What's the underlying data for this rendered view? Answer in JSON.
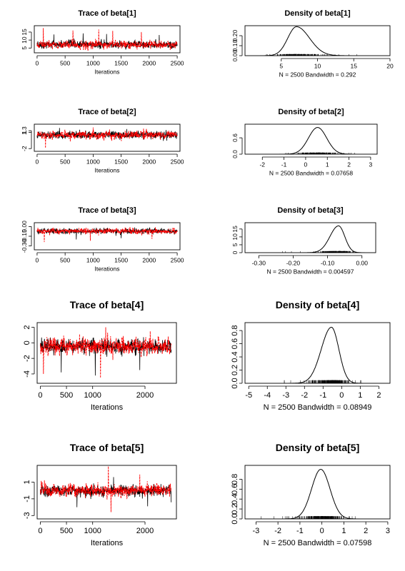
{
  "chart_data": [
    {
      "type": "line",
      "title": "Trace of beta[1]",
      "xlabel": "Iterations",
      "ylabel": "",
      "xlim": [
        -50,
        2550
      ],
      "ylim": [
        2,
        19
      ],
      "x_ticks": [
        0,
        500,
        1000,
        1500,
        2000,
        2500
      ],
      "y_ticks": [
        5,
        10,
        15
      ],
      "y_tick_labels": [
        "5",
        "10",
        "15"
      ],
      "n_iterations": 2500,
      "series": [
        {
          "color": "#000000",
          "center": 7.2,
          "spread": 1.4,
          "spikes": [
            [
              300,
              13.5
            ],
            [
              820,
              14.2
            ],
            [
              1240,
              13.8
            ],
            [
              2180,
              13.2
            ]
          ]
        },
        {
          "color": "#ff0000",
          "center": 7.0,
          "spread": 1.5,
          "spikes": [
            [
              110,
              17.5
            ],
            [
              640,
              16.0
            ],
            [
              1100,
              16.6
            ],
            [
              1350,
              15.8
            ],
            [
              1860,
              15.0
            ]
          ]
        }
      ]
    },
    {
      "type": "line",
      "title": "Density of beta[1]",
      "xlabel": "N = 2500   Bandwidth = 0.292",
      "ylabel": "",
      "xlim": [
        0,
        20
      ],
      "ylim": [
        0,
        0.3
      ],
      "x_ticks": [
        5,
        10,
        15,
        20
      ],
      "y_ticks": [
        0,
        0.1,
        0.2
      ],
      "y_tick_labels": [
        "0.00",
        "0.10",
        "0.20"
      ],
      "curve": {
        "mode": 7.1,
        "sd_left": 1.2,
        "sd_right": 1.8,
        "peak": 0.29
      },
      "rug_range": [
        2.2,
        18.5
      ]
    },
    {
      "type": "line",
      "title": "Trace of beta[2]",
      "xlabel": "Iterations",
      "ylabel": "",
      "xlim": [
        -50,
        2550
      ],
      "ylim": [
        -2.5,
        2.5
      ],
      "x_ticks": [
        0,
        500,
        1000,
        1500,
        2000,
        2500
      ],
      "y_ticks": [
        -2,
        1,
        1.3
      ],
      "y_tick_labels": [
        "-2",
        "1",
        "1.3"
      ],
      "n_iterations": 2500,
      "series": [
        {
          "color": "#000000",
          "center": 0.5,
          "spread": 0.4,
          "spikes": [
            [
              400,
              1.8
            ],
            [
              1600,
              1.6
            ]
          ]
        },
        {
          "color": "#ff0000",
          "center": 0.5,
          "spread": 0.45,
          "spikes": [
            [
              150,
              -1.9
            ],
            [
              1000,
              1.9
            ],
            [
              1900,
              1.7
            ]
          ]
        }
      ]
    },
    {
      "type": "line",
      "title": "Density of beta[2]",
      "xlabel": "N = 2500   Bandwidth = 0.07658",
      "ylabel": "",
      "xlim": [
        -2.8,
        3.3
      ],
      "ylim": [
        0,
        1.1
      ],
      "x_ticks": [
        -2,
        -1,
        0,
        1,
        2,
        3
      ],
      "y_ticks": [
        0,
        0.6
      ],
      "y_tick_labels": [
        "0.0",
        "0.6"
      ],
      "curve": {
        "mode": 0.55,
        "sd_left": 0.42,
        "sd_right": 0.42,
        "peak": 0.98
      },
      "rug_range": [
        -1.5,
        2.6
      ]
    },
    {
      "type": "line",
      "title": "Trace of beta[3]",
      "xlabel": "Iterations",
      "ylabel": "",
      "xlim": [
        -50,
        2550
      ],
      "ylim": [
        -0.36,
        0.06
      ],
      "x_ticks": [
        0,
        500,
        1000,
        1500,
        2000,
        2500
      ],
      "y_ticks": [
        -0.3,
        -0.15,
        0
      ],
      "y_tick_labels": [
        "-0.30",
        "-0.15",
        "0.00"
      ],
      "n_iterations": 2500,
      "series": [
        {
          "color": "#000000",
          "center": -0.07,
          "spread": 0.025,
          "spikes": [
            [
              700,
              -0.2
            ],
            [
              1500,
              -0.18
            ]
          ]
        },
        {
          "color": "#ff0000",
          "center": -0.07,
          "spread": 0.028,
          "spikes": [
            [
              130,
              -0.24
            ],
            [
              950,
              -0.22
            ],
            [
              2050,
              -0.19
            ]
          ]
        }
      ]
    },
    {
      "type": "line",
      "title": "Density of beta[3]",
      "xlabel": "N = 2500   Bandwidth = 0.004597",
      "ylabel": "",
      "xlim": [
        -0.34,
        0.04
      ],
      "ylim": [
        0,
        19
      ],
      "x_ticks": [
        -0.3,
        -0.2,
        -0.1,
        0
      ],
      "y_ticks": [
        0,
        5,
        10,
        15
      ],
      "y_tick_labels": [
        "0",
        "5",
        "10",
        "15"
      ],
      "x_tick_labels": [
        "-0.30",
        "-0.20",
        "-0.10",
        "0.00"
      ],
      "curve": {
        "mode": -0.068,
        "sd_left": 0.025,
        "sd_right": 0.018,
        "peak": 17
      },
      "rug_range": [
        -0.24,
        -0.01
      ]
    },
    {
      "type": "line",
      "title": "Trace of beta[4]",
      "xlabel": "Iterations",
      "ylabel": "",
      "xlim": [
        -60,
        2600
      ],
      "ylim": [
        -5.2,
        2.6
      ],
      "x_ticks": [
        0,
        500,
        1000,
        2000
      ],
      "y_ticks": [
        -4,
        -2,
        0,
        2
      ],
      "y_tick_labels": [
        "-4",
        "-2",
        "0",
        "2"
      ],
      "n_iterations": 2500,
      "series": [
        {
          "color": "#000000",
          "center": -0.5,
          "spread": 0.55,
          "spikes": [
            [
              400,
              -3.8
            ],
            [
              1050,
              -4.2
            ],
            [
              1900,
              -3.5
            ]
          ]
        },
        {
          "color": "#ff0000",
          "center": -0.45,
          "spread": 0.6,
          "spikes": [
            [
              60,
              -4.0
            ],
            [
              1150,
              -4.5
            ],
            [
              1250,
              2.0
            ],
            [
              2100,
              1.5
            ]
          ]
        }
      ]
    },
    {
      "type": "line",
      "title": "Density of beta[4]",
      "xlabel": "N = 2500   Bandwidth = 0.08949",
      "ylabel": "",
      "xlim": [
        -5.2,
        2.6
      ],
      "ylim": [
        0,
        0.92
      ],
      "x_ticks": [
        -5,
        -4,
        -3,
        -2,
        -1,
        0,
        1,
        2
      ],
      "y_ticks": [
        0,
        0.2,
        0.4,
        0.6,
        0.8
      ],
      "y_tick_labels": [
        "0.0",
        "0.2",
        "0.4",
        "0.6",
        "0.8"
      ],
      "curve": {
        "mode": -0.55,
        "sd_left": 0.55,
        "sd_right": 0.4,
        "peak": 0.85
      },
      "rug_range": [
        -3.5,
        1.3
      ]
    },
    {
      "type": "line",
      "title": "Trace of beta[5]",
      "xlabel": "Iterations",
      "ylabel": "",
      "xlim": [
        -60,
        2600
      ],
      "ylim": [
        -3.4,
        3.0
      ],
      "x_ticks": [
        0,
        500,
        1000,
        2000
      ],
      "y_ticks": [
        -3,
        -1,
        1
      ],
      "y_tick_labels": [
        "-3",
        "-1",
        "1"
      ],
      "n_iterations": 2500,
      "series": [
        {
          "color": "#000000",
          "center": -0.05,
          "spread": 0.42,
          "spikes": [
            [
              700,
              -2.0
            ],
            [
              1400,
              1.6
            ],
            [
              2050,
              -1.9
            ]
          ]
        },
        {
          "color": "#ff0000",
          "center": 0.0,
          "spread": 0.45,
          "spikes": [
            [
              1300,
              2.9
            ],
            [
              1350,
              -2.6
            ],
            [
              1900,
              1.9
            ]
          ]
        }
      ]
    },
    {
      "type": "line",
      "title": "Density of beta[5]",
      "xlabel": "N = 2500   Bandwidth = 0.07598",
      "ylabel": "",
      "xlim": [
        -3.5,
        3.1
      ],
      "ylim": [
        0,
        1.08
      ],
      "x_ticks": [
        -3,
        -2,
        -1,
        0,
        1,
        2,
        3
      ],
      "y_ticks": [
        0,
        0.2,
        0.4,
        0.6,
        0.8
      ],
      "y_tick_labels": [
        "0.0",
        "0.2",
        "0.4",
        "0.6",
        "0.8"
      ],
      "curve": {
        "mode": -0.05,
        "sd_left": 0.42,
        "sd_right": 0.42,
        "peak": 1.0
      },
      "rug_range": [
        -2.9,
        1.7
      ]
    }
  ]
}
